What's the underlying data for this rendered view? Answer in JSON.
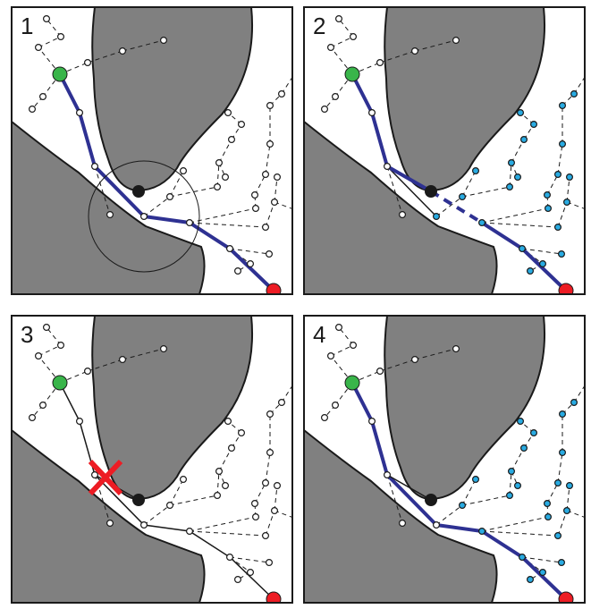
{
  "panels": [
    {
      "label": "1"
    },
    {
      "label": "2"
    },
    {
      "label": "3"
    },
    {
      "label": "4"
    }
  ],
  "colors": {
    "obstacle": "#808080",
    "path": "#2e3192",
    "start": "#39b54a",
    "goal": "#ed1c24",
    "new_node": "#1a1a1a",
    "rewired_node": "#29abe2",
    "cross": "#ed1c24"
  },
  "icons": {
    "start": "green-start-node-icon",
    "goal": "red-goal-node-icon",
    "new": "black-new-node-icon",
    "cross": "red-x-cross-icon"
  }
}
